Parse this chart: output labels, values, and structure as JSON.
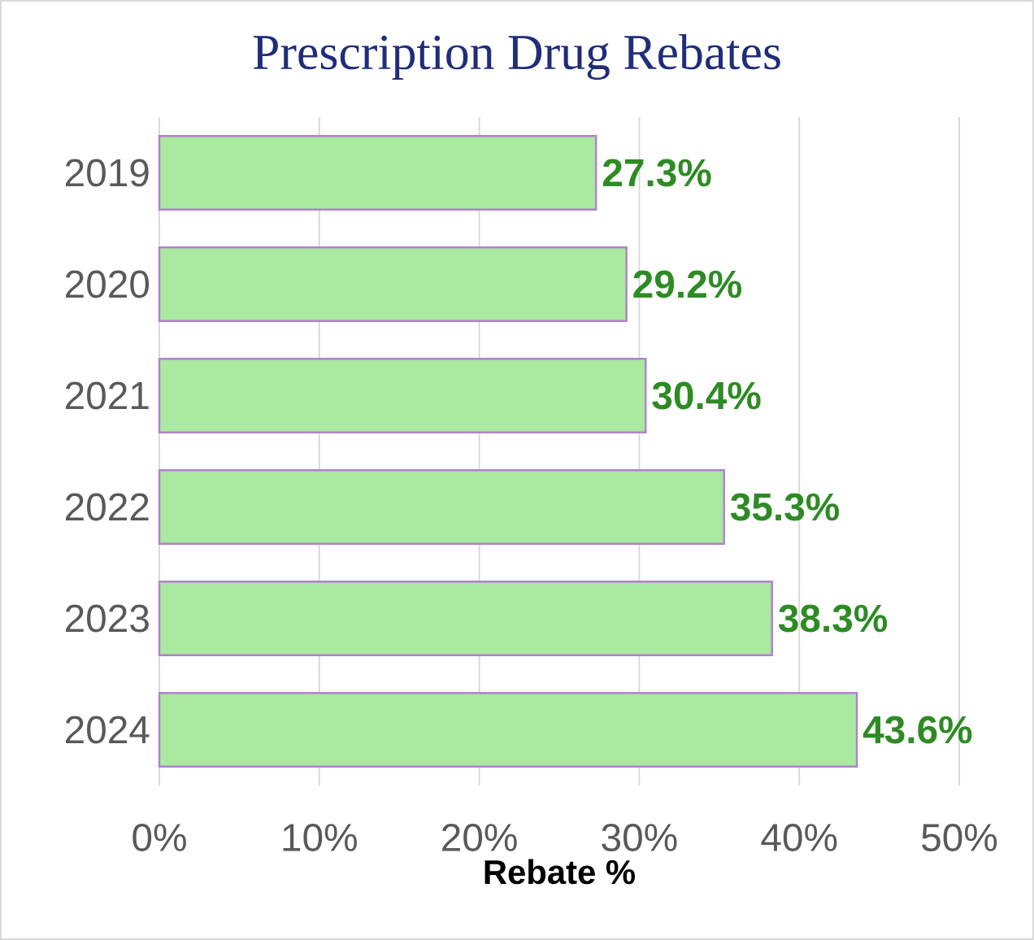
{
  "chart_data": {
    "type": "bar",
    "orientation": "horizontal",
    "title": "Prescription Drug Rebates",
    "xlabel": "Rebate %",
    "categories": [
      "2019",
      "2020",
      "2021",
      "2022",
      "2023",
      "2024"
    ],
    "values": [
      27.3,
      29.2,
      30.4,
      35.3,
      38.3,
      43.6
    ],
    "value_labels": [
      "27.3%",
      "29.2%",
      "30.4%",
      "35.3%",
      "38.3%",
      "43.6%"
    ],
    "color": "#a9e9a0",
    "xlim": [
      0,
      50
    ],
    "xticks": [
      {
        "value": 0,
        "label": "0%"
      },
      {
        "value": 10,
        "label": "10%"
      },
      {
        "value": 20,
        "label": "20%"
      },
      {
        "value": 30,
        "label": "30%"
      },
      {
        "value": 40,
        "label": "40%"
      },
      {
        "value": 50,
        "label": "50%"
      }
    ],
    "grid": "x"
  }
}
